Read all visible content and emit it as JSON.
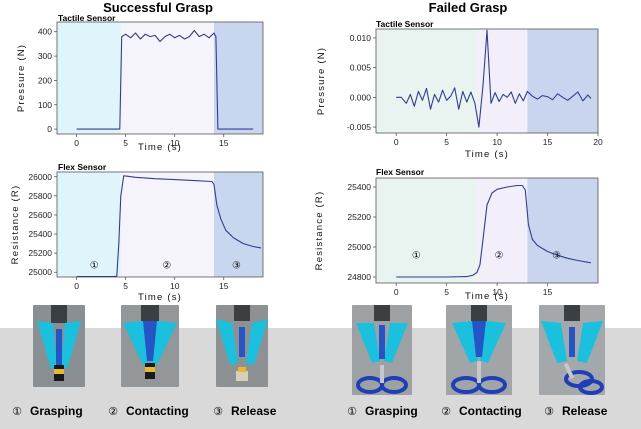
{
  "panels": {
    "successful": "Successful Grasp",
    "failed": "Failed  Grasp"
  },
  "colors": {
    "line": "#2e3f8f",
    "phase1": "#dff4fb",
    "phase2": "#f6f4fb",
    "phase3": "#c8d6ef",
    "phase1_fail": "#e9f3ef",
    "phase2_fail": "#f2effa",
    "phase3_fail": "#c9d5ee",
    "band": "#d9d9d9"
  },
  "steps": [
    {
      "num": "①",
      "label": "Grasping"
    },
    {
      "num": "②",
      "label": "Contacting"
    },
    {
      "num": "③",
      "label": "Release"
    }
  ],
  "chart_data": [
    {
      "id": "succ-tactile",
      "type": "line",
      "title": "Tactile Sensor",
      "xlabel": "Time (s)",
      "ylabel": "Pressure (N)",
      "xlim": [
        -2,
        19
      ],
      "ylim": [
        -20,
        440
      ],
      "xticks": [
        0,
        5,
        10,
        15
      ],
      "yticks": [
        0,
        100,
        200,
        300,
        400
      ],
      "ytick_labels": [
        "0",
        "100",
        "200",
        "300",
        "400"
      ],
      "phases": [
        [
          -2,
          4.5
        ],
        [
          4.5,
          14
        ],
        [
          14,
          19
        ]
      ],
      "phase_labels": [],
      "x": [
        0,
        4.4,
        4.6,
        5,
        5.5,
        6,
        6.5,
        7,
        7.5,
        8,
        8.5,
        9,
        9.5,
        10,
        10.5,
        11,
        11.5,
        12,
        12.5,
        13,
        13.5,
        14,
        14.2,
        14.4,
        18
      ],
      "y": [
        0,
        0,
        380,
        390,
        375,
        395,
        370,
        390,
        380,
        385,
        360,
        380,
        390,
        375,
        385,
        370,
        380,
        405,
        380,
        390,
        375,
        395,
        380,
        0,
        0
      ]
    },
    {
      "id": "succ-flex",
      "type": "line",
      "title": "Flex Sensor",
      "xlabel": "Time (s)",
      "ylabel": "Resistance (R)",
      "xlim": [
        -2,
        19
      ],
      "ylim": [
        24950,
        26050
      ],
      "xticks": [
        0,
        5,
        10,
        15
      ],
      "yticks": [
        25000,
        25200,
        25400,
        25600,
        25800,
        26000
      ],
      "ytick_labels": [
        "25000",
        "25200",
        "25400",
        "25600",
        "25800",
        "26000"
      ],
      "phases": [
        [
          -2,
          4.5
        ],
        [
          4.5,
          14
        ],
        [
          14,
          19
        ]
      ],
      "phase_labels": [
        {
          "text": "①",
          "x": 1.8
        },
        {
          "text": "②",
          "x": 9.2
        },
        {
          "text": "③",
          "x": 16.3
        }
      ],
      "phase_label_y": 25080,
      "x": [
        0,
        3.8,
        4.1,
        4.3,
        4.5,
        4.8,
        6,
        8,
        10,
        12,
        13.8,
        14,
        14.3,
        14.7,
        15.2,
        16,
        17,
        18,
        18.8
      ],
      "y": [
        24955,
        24955,
        24958,
        25300,
        25800,
        26010,
        25995,
        25980,
        25970,
        25960,
        25950,
        25920,
        25700,
        25560,
        25440,
        25360,
        25300,
        25270,
        25255
      ]
    },
    {
      "id": "fail-tactile",
      "type": "line",
      "title": "Tactile Sensor",
      "xlabel": "Time (s)",
      "ylabel": "Pressure (N)",
      "xlim": [
        -2,
        20
      ],
      "ylim": [
        -0.006,
        0.0115
      ],
      "xticks": [
        0,
        5,
        10,
        15,
        20
      ],
      "yticks": [
        -0.005,
        0,
        0.005,
        0.01
      ],
      "ytick_labels": [
        "-0.005",
        "0.000",
        "0.005",
        "0.010"
      ],
      "phases": [
        [
          -2,
          8
        ],
        [
          8,
          13
        ],
        [
          13,
          20
        ]
      ],
      "phase_labels": [],
      "x": [
        0,
        0.5,
        1,
        1.4,
        1.8,
        2.2,
        2.6,
        3,
        3.4,
        3.8,
        4.2,
        4.6,
        5,
        5.4,
        5.8,
        6.2,
        6.6,
        7,
        7.4,
        7.8,
        8.2,
        8.6,
        9,
        9.4,
        9.8,
        10.2,
        10.6,
        11,
        11.4,
        11.8,
        12.2,
        12.6,
        13,
        13.5,
        14,
        14.5,
        15,
        15.5,
        16,
        16.5,
        17,
        17.5,
        18,
        18.5,
        19,
        19.3
      ],
      "y": [
        0,
        0,
        -0.001,
        0.0005,
        -0.0015,
        0.001,
        -0.0005,
        0.0015,
        -0.002,
        0.0005,
        -0.0008,
        0.0012,
        -0.0005,
        0.0002,
        0.0016,
        -0.002,
        0.001,
        -0.0008,
        0.0009,
        -0.001,
        -0.005,
        0.002,
        0.0113,
        -0.001,
        0.0008,
        -0.0007,
        0.0005,
        0,
        0.0009,
        -0.001,
        0.0006,
        -0.0006,
        0.001,
        0.0002,
        -0.0003,
        0.0003,
        0.0001,
        -0.0004,
        0.0006,
        0,
        -0.0005,
        0.0002,
        0.0009,
        -0.0006,
        0.0004,
        -0.0002
      ]
    },
    {
      "id": "fail-flex",
      "type": "line",
      "title": "Flex Sensor",
      "xlabel": "Time (s)",
      "ylabel": "Resistance (R)",
      "xlim": [
        -2,
        20
      ],
      "ylim": [
        24760,
        25460
      ],
      "xticks": [
        0,
        5,
        10,
        15
      ],
      "yticks": [
        24800,
        25000,
        25200,
        25400
      ],
      "ytick_labels": [
        "24800",
        "25000",
        "25200",
        "25400"
      ],
      "phases": [
        [
          -2,
          8
        ],
        [
          8,
          13
        ],
        [
          13,
          20
        ]
      ],
      "phase_labels": [
        {
          "text": "①",
          "x": 2
        },
        {
          "text": "②",
          "x": 10.2
        },
        {
          "text": "③",
          "x": 15.9
        }
      ],
      "phase_label_y": 24950,
      "x": [
        0,
        5,
        7,
        7.6,
        8,
        8.3,
        8.6,
        9,
        9.5,
        10,
        11,
        12,
        12.5,
        12.8,
        13.1,
        13.5,
        14,
        15,
        16,
        17,
        18,
        19.3
      ],
      "y": [
        24800,
        24800,
        24803,
        24812,
        24830,
        24880,
        25050,
        25280,
        25360,
        25385,
        25400,
        25410,
        25410,
        25380,
        25150,
        25050,
        25010,
        24970,
        24945,
        24925,
        24910,
        24895
      ]
    }
  ]
}
